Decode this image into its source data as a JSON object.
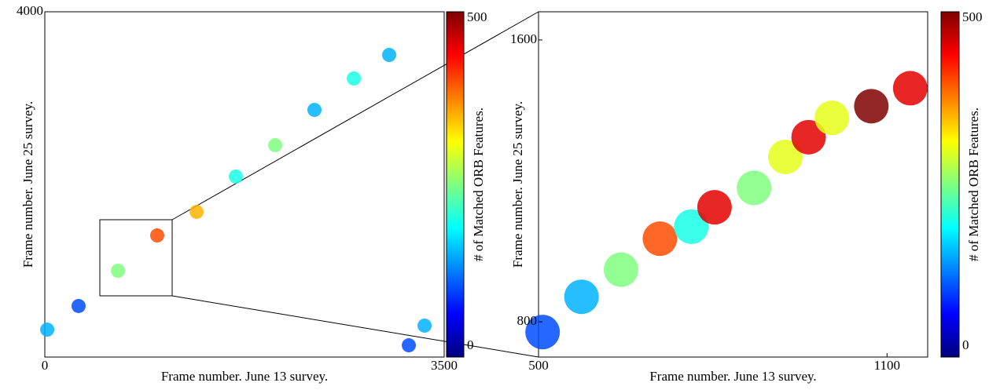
{
  "chart_data": [
    {
      "type": "scatter",
      "xlabel": "Frame number. June 13 survey.",
      "ylabel": "Frame number. June 25 survey.",
      "xlim": [
        0,
        3500
      ],
      "ylim": [
        0,
        4000
      ],
      "xticks": [
        0,
        3500
      ],
      "yticks": [
        4000
      ],
      "colormap": "jet",
      "x": [
        21,
        296,
        641,
        985,
        1330,
        1674,
        2019,
        2363,
        2708,
        3018,
        3190,
        3328
      ],
      "y": [
        318,
        591,
        1000,
        1409,
        1682,
        2091,
        2454,
        2863,
        3227,
        3500,
        136,
        364
      ],
      "values": [
        150,
        100,
        250,
        400,
        350,
        200,
        250,
        150,
        200,
        150,
        100,
        150
      ],
      "colorbar": {
        "label": "# of Matched ORB Features.",
        "lim": [
          0,
          500
        ],
        "ticks": [
          0,
          500
        ]
      }
    },
    {
      "type": "scatter",
      "xlabel": "Frame number. June 13 survey.",
      "ylabel": "Frame number. June 25 survey.",
      "xlim": [
        500,
        1170
      ],
      "ylim": [
        700,
        1680
      ],
      "xticks": [
        500,
        1100
      ],
      "yticks": [
        800,
        1600
      ],
      "colormap": "jet",
      "x": [
        507,
        574,
        642,
        709,
        763,
        803,
        871,
        925,
        965,
        1005,
        1073,
        1140
      ],
      "y": [
        771,
        871,
        948,
        1036,
        1070,
        1125,
        1180,
        1268,
        1324,
        1379,
        1412,
        1463
      ],
      "values": [
        100,
        150,
        250,
        400,
        200,
        450,
        250,
        300,
        450,
        300,
        500,
        450
      ],
      "colorbar": {
        "label": "# of Matched ORB Features.",
        "lim": [
          0,
          500
        ],
        "ticks": [
          0,
          500
        ]
      }
    }
  ]
}
